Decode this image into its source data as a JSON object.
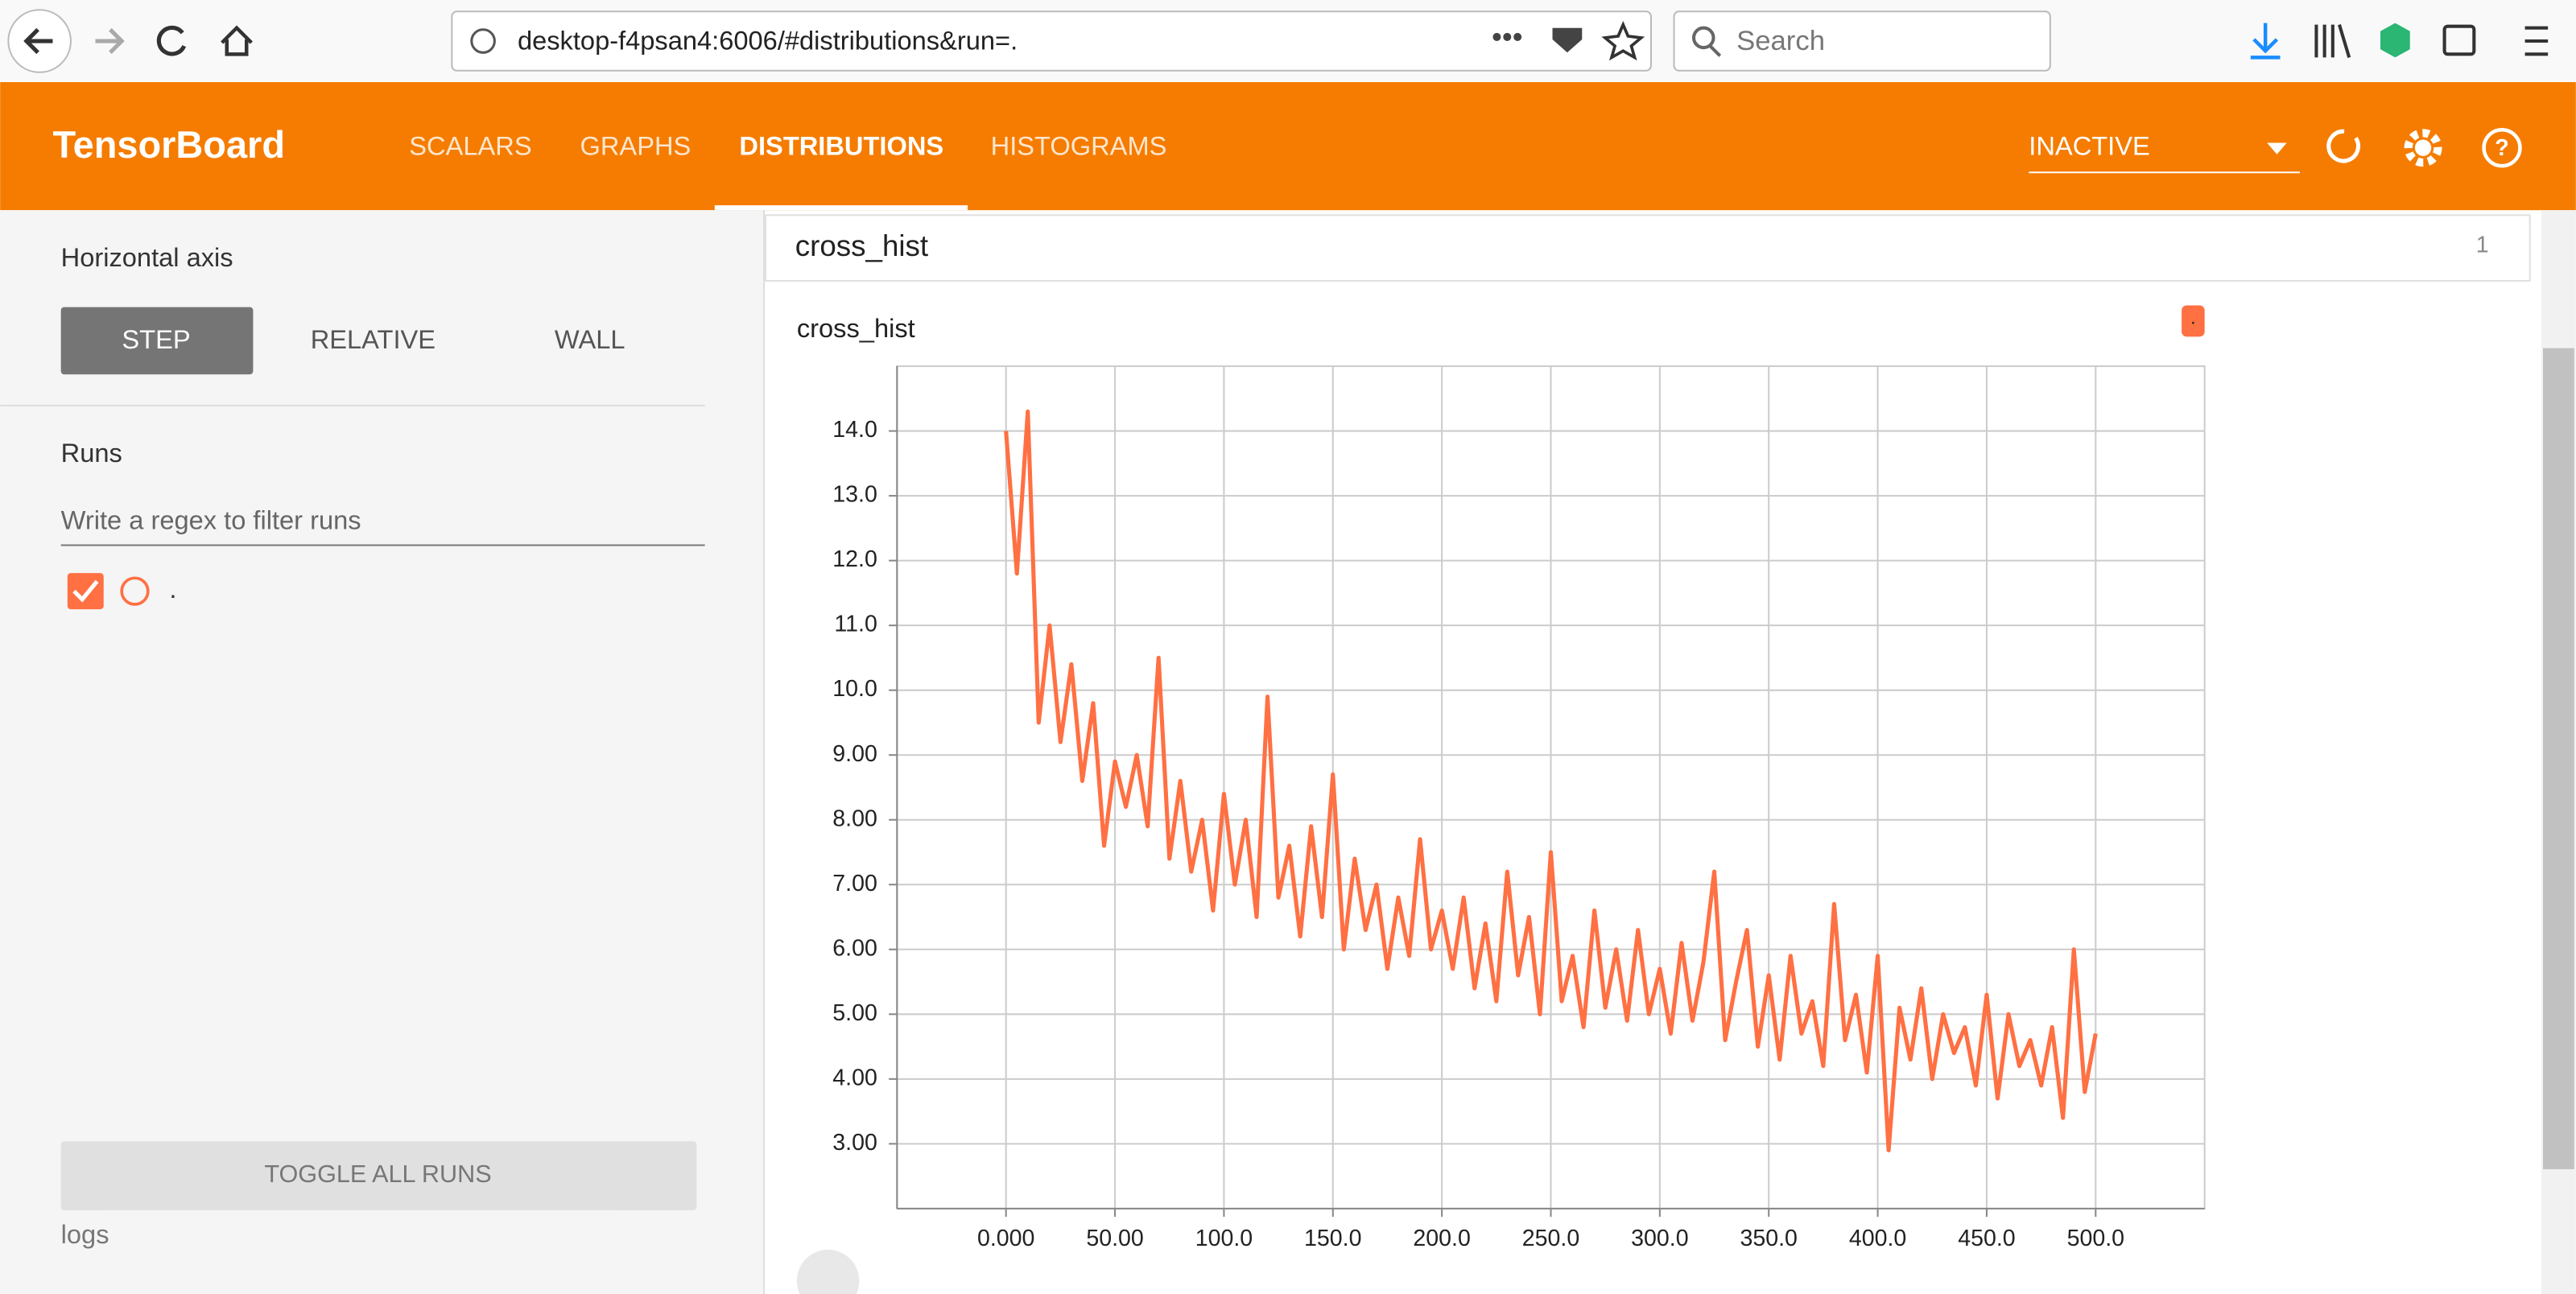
{
  "browser": {
    "url": "desktop-f4psan4:6006/#distributions&run=.",
    "search": "Search"
  },
  "header": {
    "title": "TensorBoard",
    "tabs": [
      "SCALARS",
      "GRAPHS",
      "DISTRIBUTIONS",
      "HISTOGRAMS"
    ],
    "run_status": "INACTIVE"
  },
  "sidebar": {
    "axis_label": "Horizontal axis",
    "axis_options": [
      "STEP",
      "RELATIVE",
      "WALL"
    ],
    "runs_label": "Runs",
    "filter_placeholder": "Write a regex to filter runs",
    "runs": [
      "."
    ],
    "toggle": "TOGGLE ALL RUNS",
    "logdir": "logs"
  },
  "card": {
    "title": "cross_hist",
    "count": "1"
  },
  "chart_data": {
    "type": "line",
    "title": "cross_hist",
    "x": [
      0,
      5,
      10,
      15,
      20,
      25,
      30,
      35,
      40,
      45,
      50,
      55,
      60,
      65,
      70,
      75,
      80,
      85,
      90,
      95,
      100,
      105,
      110,
      115,
      120,
      125,
      130,
      135,
      140,
      145,
      150,
      155,
      160,
      165,
      170,
      175,
      180,
      185,
      190,
      195,
      200,
      205,
      210,
      215,
      220,
      225,
      230,
      235,
      240,
      245,
      250,
      255,
      260,
      265,
      270,
      275,
      280,
      285,
      290,
      295,
      300,
      305,
      310,
      315,
      320,
      325,
      330,
      335,
      340,
      345,
      350,
      355,
      360,
      365,
      370,
      375,
      380,
      385,
      390,
      395,
      400,
      405,
      410,
      415,
      420,
      425,
      430,
      435,
      440,
      445,
      450,
      455,
      460,
      465,
      470,
      475,
      480,
      485,
      490,
      495,
      500
    ],
    "series": [
      {
        "name": ".",
        "color": "#ff7043",
        "values": [
          14.0,
          11.8,
          14.3,
          9.5,
          11.0,
          9.2,
          10.4,
          8.6,
          9.8,
          7.6,
          8.9,
          8.2,
          9.0,
          7.9,
          10.5,
          7.4,
          8.6,
          7.2,
          8.0,
          6.6,
          8.4,
          7.0,
          8.0,
          6.5,
          9.9,
          6.8,
          7.6,
          6.2,
          7.9,
          6.5,
          8.7,
          6.0,
          7.4,
          6.3,
          7.0,
          5.7,
          6.8,
          5.9,
          7.7,
          6.0,
          6.6,
          5.7,
          6.8,
          5.4,
          6.4,
          5.2,
          7.2,
          5.6,
          6.5,
          5.0,
          7.5,
          5.2,
          5.9,
          4.8,
          6.6,
          5.1,
          6.0,
          4.9,
          6.3,
          5.0,
          5.7,
          4.7,
          6.1,
          4.9,
          5.8,
          7.2,
          4.6,
          5.5,
          6.3,
          4.5,
          5.6,
          4.3,
          5.9,
          4.7,
          5.2,
          4.2,
          6.7,
          4.6,
          5.3,
          4.1,
          5.9,
          2.9,
          5.1,
          4.3,
          5.4,
          4.0,
          5.0,
          4.4,
          4.8,
          3.9,
          5.3,
          3.7,
          5.0,
          4.2,
          4.6,
          3.9,
          4.8,
          3.4,
          6.0,
          3.8,
          4.7
        ]
      }
    ],
    "xlim": [
      -50,
      550
    ],
    "xticks": [
      {
        "value": 0,
        "label": "0.000"
      },
      {
        "value": 50,
        "label": "50.00"
      },
      {
        "value": 100,
        "label": "100.0"
      },
      {
        "value": 150,
        "label": "150.0"
      },
      {
        "value": 200,
        "label": "200.0"
      },
      {
        "value": 250,
        "label": "250.0"
      },
      {
        "value": 300,
        "label": "300.0"
      },
      {
        "value": 350,
        "label": "350.0"
      },
      {
        "value": 400,
        "label": "400.0"
      },
      {
        "value": 450,
        "label": "450.0"
      },
      {
        "value": 500,
        "label": "500.0"
      }
    ],
    "ylim": [
      2,
      15
    ],
    "yticks": [
      {
        "value": 3,
        "label": "3.00"
      },
      {
        "value": 4,
        "label": "4.00"
      },
      {
        "value": 5,
        "label": "5.00"
      },
      {
        "value": 6,
        "label": "6.00"
      },
      {
        "value": 7,
        "label": "7.00"
      },
      {
        "value": 8,
        "label": "8.00"
      },
      {
        "value": 9,
        "label": "9.00"
      },
      {
        "value": 10,
        "label": "10.0"
      },
      {
        "value": 11,
        "label": "11.0"
      },
      {
        "value": 12,
        "label": "12.0"
      },
      {
        "value": 13,
        "label": "13.0"
      },
      {
        "value": 14,
        "label": "14.0"
      }
    ],
    "grid": true
  }
}
